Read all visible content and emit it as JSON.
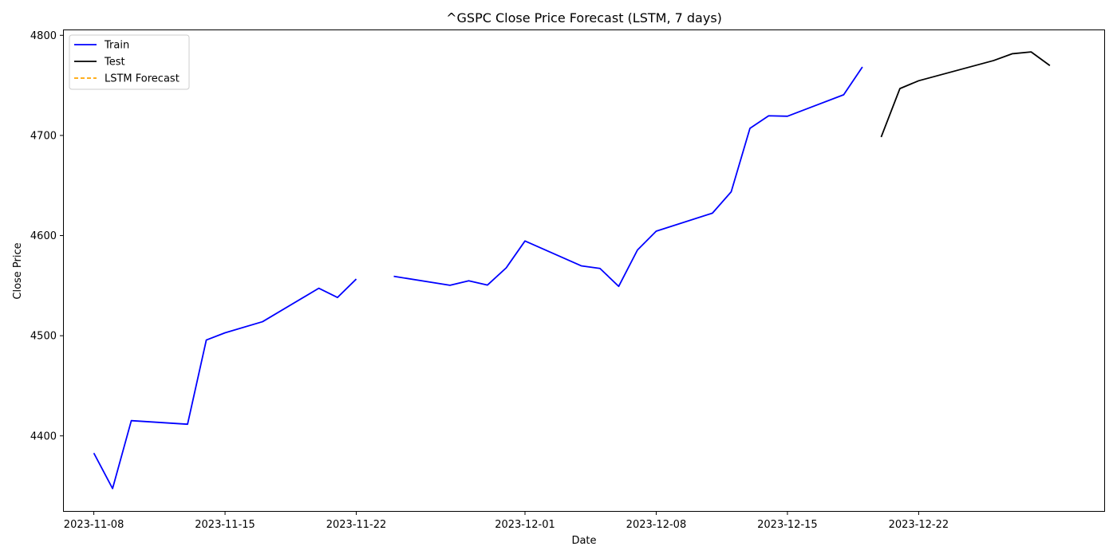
{
  "chart_data": {
    "type": "line",
    "title": "^GSPC Close Price Forecast (LSTM, 7 days)",
    "xlabel": "Date",
    "ylabel": "Close Price",
    "xlim": [
      "2023-11-06.4",
      "2023-12-31.9"
    ],
    "ylim": [
      4325,
      4805
    ],
    "x_ticks": [
      "2023-11-08",
      "2023-11-15",
      "2023-11-22",
      "2023-12-01",
      "2023-12-08",
      "2023-12-15",
      "2023-12-22"
    ],
    "y_ticks": [
      4400,
      4500,
      4600,
      4700,
      4800
    ],
    "grid": false,
    "legend_position": "top-left",
    "series": [
      {
        "name": "Train",
        "color": "#0000ff",
        "style": "solid",
        "points": [
          [
            "2023-11-08",
            4382.8
          ],
          [
            "2023-11-09",
            4347.4
          ],
          [
            "2023-11-10",
            4415.2
          ],
          [
            "2023-11-13",
            4411.6
          ],
          [
            "2023-11-14",
            4495.7
          ],
          [
            "2023-11-15",
            4502.9
          ],
          [
            "2023-11-17",
            4514.0
          ],
          [
            "2023-11-20",
            4547.4
          ],
          [
            "2023-11-21",
            4538.2
          ],
          [
            "2023-11-22",
            4556.6
          ],
          [
            "2023-11-24",
            4559.3
          ],
          [
            "2023-11-27",
            4550.4
          ],
          [
            "2023-11-28",
            4554.9
          ],
          [
            "2023-11-29",
            4550.6
          ],
          [
            "2023-11-30",
            4567.8
          ],
          [
            "2023-12-01",
            4594.6
          ],
          [
            "2023-12-04",
            4569.8
          ],
          [
            "2023-12-05",
            4567.2
          ],
          [
            "2023-12-06",
            4549.3
          ],
          [
            "2023-12-07",
            4585.6
          ],
          [
            "2023-12-08",
            4604.4
          ],
          [
            "2023-12-11",
            4622.4
          ],
          [
            "2023-12-12",
            4643.7
          ],
          [
            "2023-12-13",
            4707.1
          ],
          [
            "2023-12-14",
            4719.6
          ],
          [
            "2023-12-15",
            4719.2
          ],
          [
            "2023-12-18",
            4740.6
          ],
          [
            "2023-12-19",
            4768.4
          ]
        ]
      },
      {
        "name": "Test",
        "color": "#000000",
        "style": "solid",
        "points": [
          [
            "2023-12-20",
            4698.4
          ],
          [
            "2023-12-21",
            4746.8
          ],
          [
            "2023-12-22",
            4754.6
          ],
          [
            "2023-12-26",
            4774.8
          ],
          [
            "2023-12-27",
            4781.6
          ],
          [
            "2023-12-28",
            4783.4
          ],
          [
            "2023-12-29",
            4769.8
          ]
        ]
      },
      {
        "name": "LSTM Forecast",
        "color": "#ffa500",
        "style": "dashed",
        "points": []
      }
    ]
  }
}
